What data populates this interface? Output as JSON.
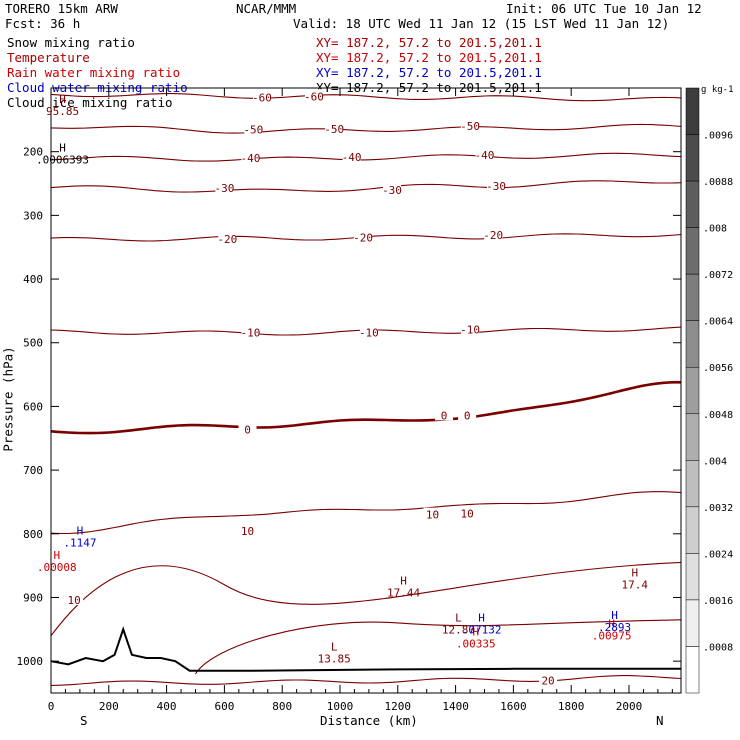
{
  "header": {
    "model": "TORERO  15km ARW",
    "org": "NCAR/MMM",
    "init": "Init: 06 UTC Tue 10 Jan 12",
    "fcst": "Fcst:   36 h",
    "valid": "Valid: 18 UTC Wed 11 Jan 12 (15 LST Wed 11 Jan 12)"
  },
  "fields": [
    {
      "name": "Snow mixing ratio",
      "color": "#000000",
      "xy": ""
    },
    {
      "name": "Temperature",
      "color": "#aa0000",
      "xy": "XY= 187.2, 57.2 to 201.5,201.1"
    },
    {
      "name": "Rain water mixing ratio",
      "color": "#cc0000",
      "xy": "XY= 187.2, 57.2 to 201.5,201.1"
    },
    {
      "name": "Cloud water mixing ratio",
      "color": "#0000cc",
      "xy": "XY= 187.2, 57.2 to 201.5,201.1"
    },
    {
      "name": "Cloud ice mixing ratio",
      "color": "#000000",
      "xy": "XY= 187.2, 57.2 to 201.5,201.1"
    }
  ],
  "chart_data": {
    "type": "contour-cross-section",
    "xlabel": "Distance (km)",
    "ylabel": "Pressure (hPa)",
    "xlim": [
      0,
      2180
    ],
    "ylim": [
      1050,
      100
    ],
    "x_ticks": [
      0,
      200,
      400,
      600,
      800,
      1000,
      1200,
      1400,
      1600,
      1800,
      2000
    ],
    "y_ticks": [
      200,
      300,
      400,
      500,
      600,
      700,
      800,
      900,
      1000
    ],
    "x_end_labels": {
      "left": "S",
      "right": "N"
    },
    "colorbar": {
      "units": "g kg-1",
      "tick_labels": [
        ".0096",
        ".0088",
        ".008",
        ".0072",
        ".0064",
        ".0056",
        ".0048",
        ".004",
        ".0032",
        ".0024",
        ".0016",
        ".0008"
      ]
    },
    "temperature_contours": [
      {
        "level": -60,
        "p": [
          110,
          113,
          115,
          118
        ]
      },
      {
        "level": -50,
        "p": [
          160,
          168,
          164,
          160
        ]
      },
      {
        "level": -40,
        "p": [
          210,
          212,
          208,
          205
        ]
      },
      {
        "level": -30,
        "p": [
          256,
          262,
          254,
          246
        ]
      },
      {
        "level": -20,
        "p": [
          338,
          336,
          334,
          330
        ]
      },
      {
        "level": -10,
        "p": [
          483,
          485,
          482,
          478
        ]
      },
      {
        "level": 0,
        "p": [
          640,
          630,
          618,
          565
        ]
      },
      {
        "level": 10,
        "p": [
          797,
          768,
          757,
          736
        ]
      },
      {
        "level": 20,
        "p": [
          1035,
          1033,
          1030,
          1025
        ]
      }
    ],
    "temperature_labels": [
      {
        "text": "-60",
        "x": 730,
        "p": 115
      },
      {
        "text": "-60",
        "x": 910,
        "p": 113
      },
      {
        "text": "-50",
        "x": 700,
        "p": 165
      },
      {
        "text": "-50",
        "x": 980,
        "p": 164
      },
      {
        "text": "-50",
        "x": 1450,
        "p": 160
      },
      {
        "text": "-40",
        "x": 690,
        "p": 210
      },
      {
        "text": "-40",
        "x": 1040,
        "p": 208
      },
      {
        "text": "-40",
        "x": 1500,
        "p": 205
      },
      {
        "text": "-30",
        "x": 600,
        "p": 257
      },
      {
        "text": "-30",
        "x": 1180,
        "p": 260
      },
      {
        "text": "-30",
        "x": 1540,
        "p": 254
      },
      {
        "text": "-20",
        "x": 610,
        "p": 337
      },
      {
        "text": "-20",
        "x": 1080,
        "p": 335
      },
      {
        "text": "-20",
        "x": 1530,
        "p": 331
      },
      {
        "text": "-10",
        "x": 690,
        "p": 484
      },
      {
        "text": "-10",
        "x": 1100,
        "p": 484
      },
      {
        "text": "-10",
        "x": 1450,
        "p": 479
      },
      {
        "text": "0",
        "x": 680,
        "p": 636
      },
      {
        "text": "0",
        "x": 1360,
        "p": 614
      },
      {
        "text": "0",
        "x": 1440,
        "p": 614
      },
      {
        "text": "10",
        "x": 680,
        "p": 796
      },
      {
        "text": "10",
        "x": 1320,
        "p": 770
      },
      {
        "text": "10",
        "x": 1440,
        "p": 768
      },
      {
        "text": "10",
        "x": 80,
        "p": 904
      },
      {
        "text": "20",
        "x": 1720,
        "p": 1030
      }
    ],
    "extrema": [
      {
        "type": "H",
        "value": ".0006393",
        "field": "Snow mixing ratio",
        "x": 40,
        "p": 212
      },
      {
        "type": "H",
        "value": "95.85",
        "field": "Temperature",
        "x": 40,
        "p": 136
      },
      {
        "type": "H",
        "value": ".1147",
        "field": "Cloud water mixing ratio",
        "x": 100,
        "p": 814
      },
      {
        "type": "H",
        "value": ".00008",
        "field": "Rain water mixing ratio",
        "x": 20,
        "p": 852
      },
      {
        "type": "H",
        "value": "17.44",
        "field": "Temperature",
        "x": 1220,
        "p": 892
      },
      {
        "type": "L",
        "value": "13.85",
        "field": "Temperature",
        "x": 980,
        "p": 996
      },
      {
        "type": "L",
        "value": "12.87",
        "field": "Temperature",
        "x": 1410,
        "p": 950
      },
      {
        "type": "H",
        "value": ".00335",
        "field": "Rain water mixing ratio",
        "x": 1470,
        "p": 972
      },
      {
        "type": "H",
        "value": ".07132",
        "field": "Cloud water mixing ratio",
        "x": 1490,
        "p": 950
      },
      {
        "type": "H",
        "value": "17.4",
        "field": "Temperature",
        "x": 2020,
        "p": 880
      },
      {
        "type": "H",
        "value": ".00975",
        "field": "Rain water mixing ratio",
        "x": 1940,
        "p": 960
      },
      {
        "type": "H",
        "value": ".2893",
        "field": "Cloud water mixing ratio",
        "x": 1950,
        "p": 946
      }
    ],
    "terrain": {
      "x": [
        0,
        60,
        120,
        180,
        220,
        250,
        280,
        330,
        380,
        430,
        480,
        700,
        1200,
        1600,
        2180
      ],
      "p": [
        1000,
        1005,
        995,
        1000,
        990,
        950,
        990,
        995,
        995,
        1000,
        1015,
        1015,
        1013,
        1012,
        1012
      ]
    }
  }
}
